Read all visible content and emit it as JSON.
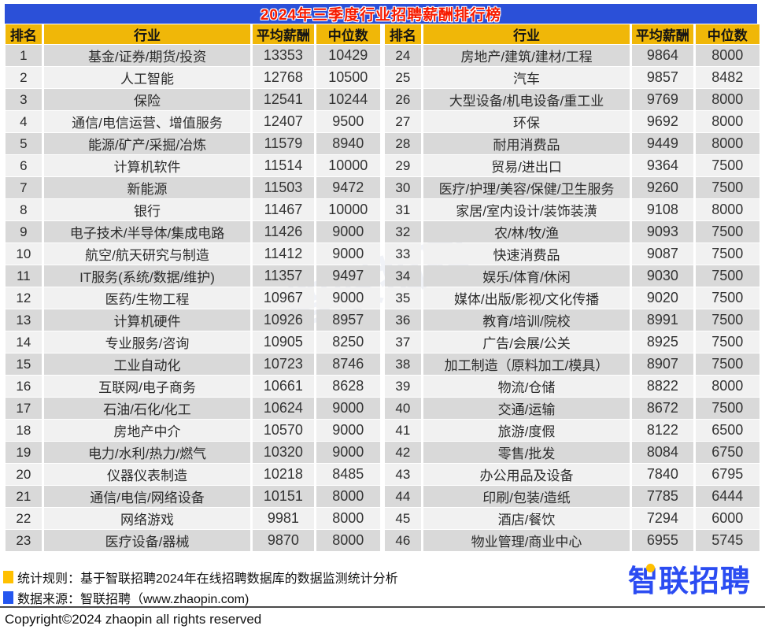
{
  "title": "2024年三季度行业招聘薪酬排行榜",
  "chart_data": {
    "type": "table",
    "title": "2024年三季度行业招聘薪酬排行榜",
    "columns": [
      "排名",
      "行业",
      "平均薪酬",
      "中位数"
    ],
    "left_rows": [
      [
        1,
        "基金/证券/期货/投资",
        13353,
        10429
      ],
      [
        2,
        "人工智能",
        12768,
        10500
      ],
      [
        3,
        "保险",
        12541,
        10244
      ],
      [
        4,
        "通信/电信运营、增值服务",
        12407,
        9500
      ],
      [
        5,
        "能源/矿产/采掘/冶炼",
        11579,
        8940
      ],
      [
        6,
        "计算机软件",
        11514,
        10000
      ],
      [
        7,
        "新能源",
        11503,
        9472
      ],
      [
        8,
        "银行",
        11467,
        10000
      ],
      [
        9,
        "电子技术/半导体/集成电路",
        11426,
        9000
      ],
      [
        10,
        "航空/航天研究与制造",
        11412,
        9000
      ],
      [
        11,
        "IT服务(系统/数据/维护)",
        11357,
        9497
      ],
      [
        12,
        "医药/生物工程",
        10967,
        9000
      ],
      [
        13,
        "计算机硬件",
        10926,
        8957
      ],
      [
        14,
        "专业服务/咨询",
        10905,
        8250
      ],
      [
        15,
        "工业自动化",
        10723,
        8746
      ],
      [
        16,
        "互联网/电子商务",
        10661,
        8628
      ],
      [
        17,
        "石油/石化/化工",
        10624,
        9000
      ],
      [
        18,
        "房地产中介",
        10570,
        9000
      ],
      [
        19,
        "电力/水利/热力/燃气",
        10320,
        9000
      ],
      [
        20,
        "仪器仪表制造",
        10218,
        8485
      ],
      [
        21,
        "通信/电信/网络设备",
        10151,
        8000
      ],
      [
        22,
        "网络游戏",
        9981,
        8000
      ],
      [
        23,
        "医疗设备/器械",
        9870,
        8000
      ]
    ],
    "right_rows": [
      [
        24,
        "房地产/建筑/建材/工程",
        9864,
        8000
      ],
      [
        25,
        "汽车",
        9857,
        8482
      ],
      [
        26,
        "大型设备/机电设备/重工业",
        9769,
        8000
      ],
      [
        27,
        "环保",
        9692,
        8000
      ],
      [
        28,
        "耐用消费品",
        9449,
        8000
      ],
      [
        29,
        "贸易/进出口",
        9364,
        7500
      ],
      [
        30,
        "医疗/护理/美容/保健/卫生服务",
        9260,
        7500
      ],
      [
        31,
        "家居/室内设计/装饰装潢",
        9108,
        8000
      ],
      [
        32,
        "农/林/牧/渔",
        9093,
        7500
      ],
      [
        33,
        "快速消费品",
        9087,
        7500
      ],
      [
        34,
        "娱乐/体育/休闲",
        9030,
        7500
      ],
      [
        35,
        "媒体/出版/影视/文化传播",
        9020,
        7500
      ],
      [
        36,
        "教育/培训/院校",
        8991,
        7500
      ],
      [
        37,
        "广告/会展/公关",
        8925,
        7500
      ],
      [
        38,
        "加工制造（原料加工/模具）",
        8907,
        7500
      ],
      [
        39,
        "物流/仓储",
        8822,
        8000
      ],
      [
        40,
        "交通/运输",
        8672,
        7500
      ],
      [
        41,
        "旅游/度假",
        8122,
        6500
      ],
      [
        42,
        "零售/批发",
        8084,
        6750
      ],
      [
        43,
        "办公用品及设备",
        7840,
        6795
      ],
      [
        44,
        "印刷/包装/造纸",
        7785,
        6444
      ],
      [
        45,
        "酒店/餐饮",
        7294,
        6000
      ],
      [
        46,
        "物业管理/商业中心",
        6955,
        5745
      ]
    ]
  },
  "footer": {
    "rule_label": "统计规则：基于智联招聘2024年在线招聘数据库的数据监测统计分析",
    "source_label": "数据来源：智联招聘（www.zhaopin.com)",
    "copyright": "Copyright©2024 zhaopin all rights reserved",
    "logo_text": "智联招聘"
  },
  "watermark": "智联招聘",
  "colors": {
    "title_bar": "#2b50d8",
    "title_text": "#f71b00",
    "header_gold": "#f0b708",
    "row_dark": "#d9d9d9",
    "row_light": "#f1f1f1",
    "legend_yellow": "#ffc000",
    "legend_blue": "#2456f0",
    "logo_blue": "#2b4cf2"
  }
}
